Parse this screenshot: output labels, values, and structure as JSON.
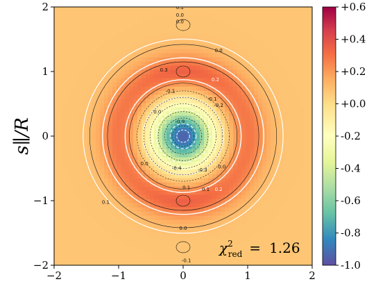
{
  "chart_data": {
    "type": "heatmap",
    "title": "",
    "xlabel": "",
    "ylabel": "s∥/R",
    "xlim": [
      -2,
      2
    ],
    "ylim": [
      -2,
      2
    ],
    "x_ticks": [
      "−2",
      "−1",
      "0",
      "1",
      "2"
    ],
    "y_ticks": [
      "−2",
      "−1",
      "0",
      "1",
      "2"
    ],
    "colorbar": {
      "colormap": "Spectral_r",
      "range": [
        -1.0,
        0.6
      ],
      "ticks": [
        "+0.6",
        "+0.4",
        "+0.2",
        "+0.0",
        "-0.2",
        "-0.4",
        "-0.6",
        "-0.8",
        "-1.0"
      ],
      "tick_values": [
        0.6,
        0.4,
        0.2,
        0.0,
        -0.2,
        -0.4,
        -0.6,
        -0.8,
        -1.0
      ]
    },
    "field_description": {
      "center_value": -0.95,
      "ring_peak_value": 0.22,
      "ring_radius": 1.0,
      "background_value": 0.08,
      "zero_crossing_radius": 0.5
    },
    "contour_labels": [
      "0.0",
      "0.0",
      "0.0",
      "0.0",
      "0.0",
      "0.0",
      "0.1",
      "0.1",
      "0.1",
      "0.2",
      "0.2",
      "0.3",
      "-0.1",
      "-0.1",
      "-0.2",
      "-0.3",
      "-0.4",
      "-0.9",
      "0.0",
      "-0.1",
      "0.1"
    ],
    "annotation": {
      "chi_label": "χ²red",
      "chi_symbol": "χ",
      "chi_sup": "2",
      "chi_sub": "red",
      "equals": "=",
      "value": "1.26"
    }
  }
}
